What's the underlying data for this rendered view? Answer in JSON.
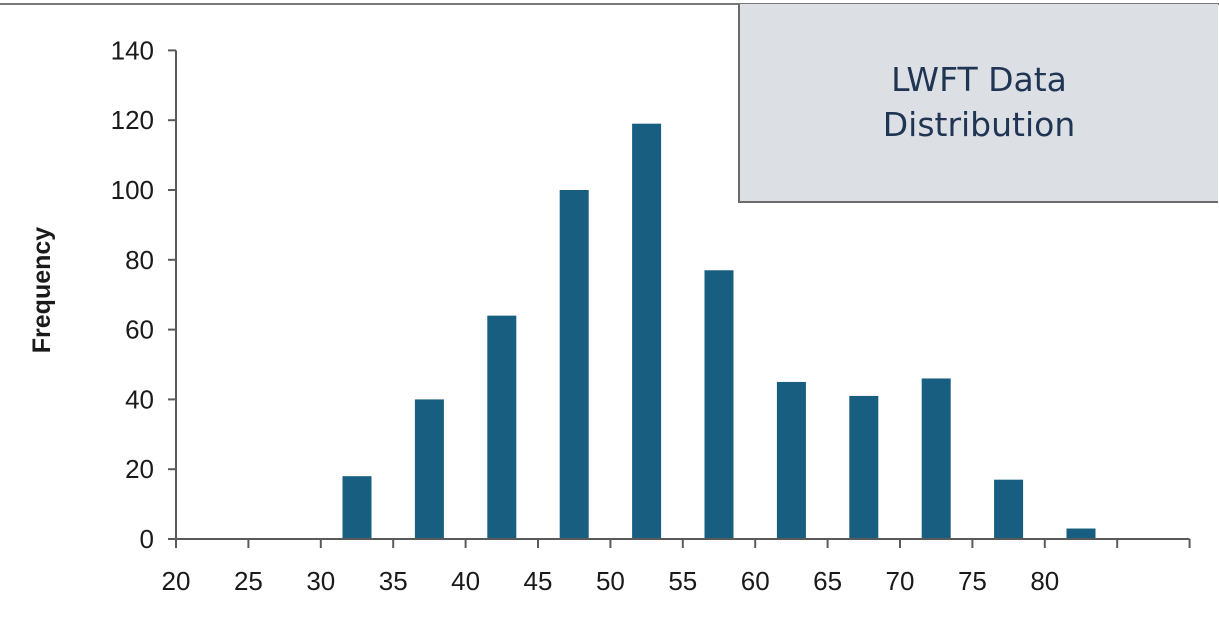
{
  "colors": {
    "bar": "#175e80",
    "axis": "#5a5a5a",
    "frame": "#7a7a7a",
    "box_bg": "#dce0e5",
    "box_text": "#1f3553"
  },
  "annotation": {
    "text": "LWFT Data\nDistribution"
  },
  "chart_data": {
    "type": "bar",
    "title": "",
    "xlabel": "",
    "ylabel": "Frequency",
    "categories": [
      "20",
      "25",
      "30",
      "35",
      "40",
      "45",
      "50",
      "55",
      "60",
      "65",
      "70",
      "75",
      "80",
      ""
    ],
    "values": [
      0,
      0,
      18,
      40,
      64,
      100,
      119,
      77,
      45,
      41,
      46,
      17,
      3,
      0
    ],
    "yticks": [
      0,
      20,
      40,
      60,
      80,
      100,
      120,
      140
    ],
    "ylim": [
      0,
      140
    ],
    "grid": false,
    "legend": "none"
  }
}
